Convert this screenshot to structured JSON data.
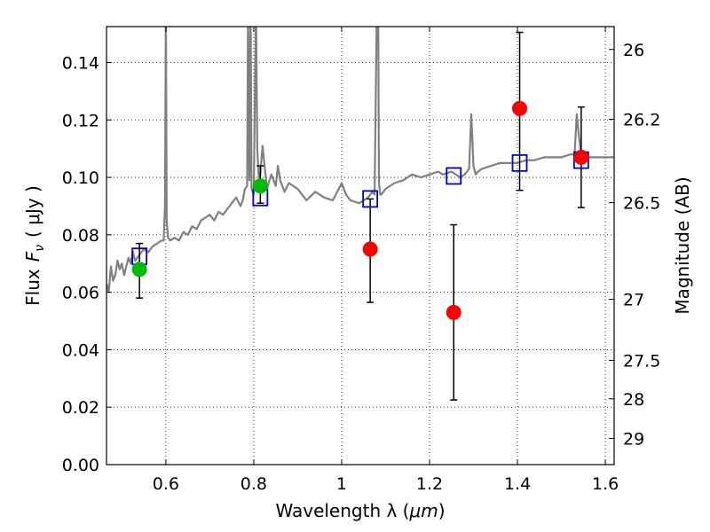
{
  "chart_data": {
    "type": "scatter",
    "xlabel_text": "Wavelength  λ (",
    "xlabel_unit": "μm",
    "xlabel_close": ")",
    "ylabel_flux": "Flux",
    "ylabel_var": "F",
    "ylabel_sub": "ν",
    "ylabel_unit": "(  μJy )",
    "y2label": "Magnitude (AB)",
    "xlim": [
      0.465,
      1.62
    ],
    "ylim": [
      0.0,
      0.1525
    ],
    "x_ticks": [
      0.6,
      0.8,
      1.0,
      1.2,
      1.4,
      1.6
    ],
    "x_tick_labels": [
      "0.6",
      "0.8",
      "1",
      "1.2",
      "1.4",
      "1.6"
    ],
    "y_ticks": [
      0.0,
      0.02,
      0.04,
      0.06,
      0.08,
      0.1,
      0.12,
      0.14
    ],
    "y_tick_labels": [
      "0.00",
      "0.02",
      "0.04",
      "0.06",
      "0.08",
      "0.10",
      "0.12",
      "0.14"
    ],
    "mag_ticks": [
      26,
      26.2,
      26.5,
      27,
      27.5,
      28,
      29
    ],
    "mag_tick_labels": [
      "26",
      "26.2",
      "26.5",
      "27",
      "27.5",
      "28",
      "29"
    ],
    "grid": true,
    "colors": {
      "model": "#808080",
      "model_points": "#0000cc",
      "green": "#00bb00",
      "red": "#ff0000",
      "errorbar": "#000000"
    },
    "series": [
      {
        "name": "model spectrum",
        "kind": "line",
        "x": [
          0.465,
          0.47,
          0.475,
          0.48,
          0.485,
          0.49,
          0.495,
          0.5,
          0.505,
          0.51,
          0.515,
          0.52,
          0.525,
          0.53,
          0.54,
          0.55,
          0.56,
          0.57,
          0.58,
          0.59,
          0.595,
          0.598,
          0.6,
          0.602,
          0.605,
          0.61,
          0.62,
          0.63,
          0.64,
          0.65,
          0.66,
          0.67,
          0.68,
          0.69,
          0.7,
          0.71,
          0.72,
          0.73,
          0.74,
          0.75,
          0.76,
          0.77,
          0.775,
          0.78,
          0.785,
          0.787,
          0.79,
          0.793,
          0.795,
          0.8,
          0.805,
          0.808,
          0.812,
          0.815,
          0.82,
          0.83,
          0.84,
          0.85,
          0.855,
          0.86,
          0.865,
          0.87,
          0.88,
          0.89,
          0.9,
          0.92,
          0.94,
          0.96,
          0.98,
          0.99,
          1.0,
          1.01,
          1.02,
          1.04,
          1.06,
          1.07,
          1.075,
          1.08,
          1.083,
          1.085,
          1.088,
          1.09,
          1.095,
          1.1,
          1.12,
          1.14,
          1.16,
          1.18,
          1.2,
          1.22,
          1.23,
          1.25,
          1.26,
          1.27,
          1.28,
          1.29,
          1.295,
          1.3,
          1.305,
          1.31,
          1.32,
          1.34,
          1.36,
          1.38,
          1.4,
          1.42,
          1.44,
          1.46,
          1.48,
          1.5,
          1.52,
          1.53,
          1.535,
          1.54,
          1.545,
          1.55,
          1.56,
          1.58,
          1.6,
          1.62
        ],
        "y": [
          0.063,
          0.06,
          0.069,
          0.064,
          0.066,
          0.071,
          0.068,
          0.07,
          0.066,
          0.069,
          0.072,
          0.07,
          0.074,
          0.071,
          0.073,
          0.075,
          0.074,
          0.076,
          0.077,
          0.078,
          0.078,
          0.09,
          0.16,
          0.085,
          0.079,
          0.078,
          0.079,
          0.078,
          0.081,
          0.08,
          0.083,
          0.082,
          0.085,
          0.086,
          0.087,
          0.085,
          0.088,
          0.087,
          0.089,
          0.091,
          0.093,
          0.09,
          0.092,
          0.096,
          0.097,
          0.16,
          0.099,
          0.16,
          0.096,
          0.094,
          0.16,
          0.11,
          0.098,
          0.101,
          0.111,
          0.096,
          0.101,
          0.097,
          0.104,
          0.099,
          0.097,
          0.095,
          0.098,
          0.097,
          0.096,
          0.092,
          0.095,
          0.093,
          0.092,
          0.095,
          0.098,
          0.094,
          0.092,
          0.091,
          0.093,
          0.095,
          0.094,
          0.16,
          0.16,
          0.098,
          0.094,
          0.094,
          0.095,
          0.096,
          0.098,
          0.099,
          0.101,
          0.1,
          0.101,
          0.102,
          0.101,
          0.102,
          0.101,
          0.1,
          0.101,
          0.103,
          0.122,
          0.104,
          0.101,
          0.102,
          0.103,
          0.104,
          0.105,
          0.105,
          0.105,
          0.106,
          0.106,
          0.107,
          0.107,
          0.107,
          0.108,
          0.108,
          0.122,
          0.114,
          0.108,
          0.107,
          0.107,
          0.107,
          0.107,
          0.107
        ]
      },
      {
        "name": "model photometry",
        "kind": "square",
        "x": [
          0.54,
          0.815,
          1.065,
          1.255,
          1.405,
          1.545
        ],
        "y": [
          0.0725,
          0.093,
          0.0925,
          0.1005,
          0.105,
          0.106
        ]
      },
      {
        "name": "green points",
        "kind": "circle",
        "x": [
          0.54,
          0.815
        ],
        "y": [
          0.068,
          0.097
        ],
        "err_low": [
          0.058,
          0.091
        ],
        "err_high": [
          0.077,
          0.104
        ]
      },
      {
        "name": "red points",
        "kind": "circle",
        "x": [
          1.065,
          1.255,
          1.405,
          1.545
        ],
        "y": [
          0.075,
          0.053,
          0.124,
          0.107
        ],
        "err_low": [
          0.0565,
          0.0225,
          0.0955,
          0.0895
        ],
        "err_high": [
          0.0925,
          0.0835,
          0.1505,
          0.1245
        ]
      }
    ]
  }
}
